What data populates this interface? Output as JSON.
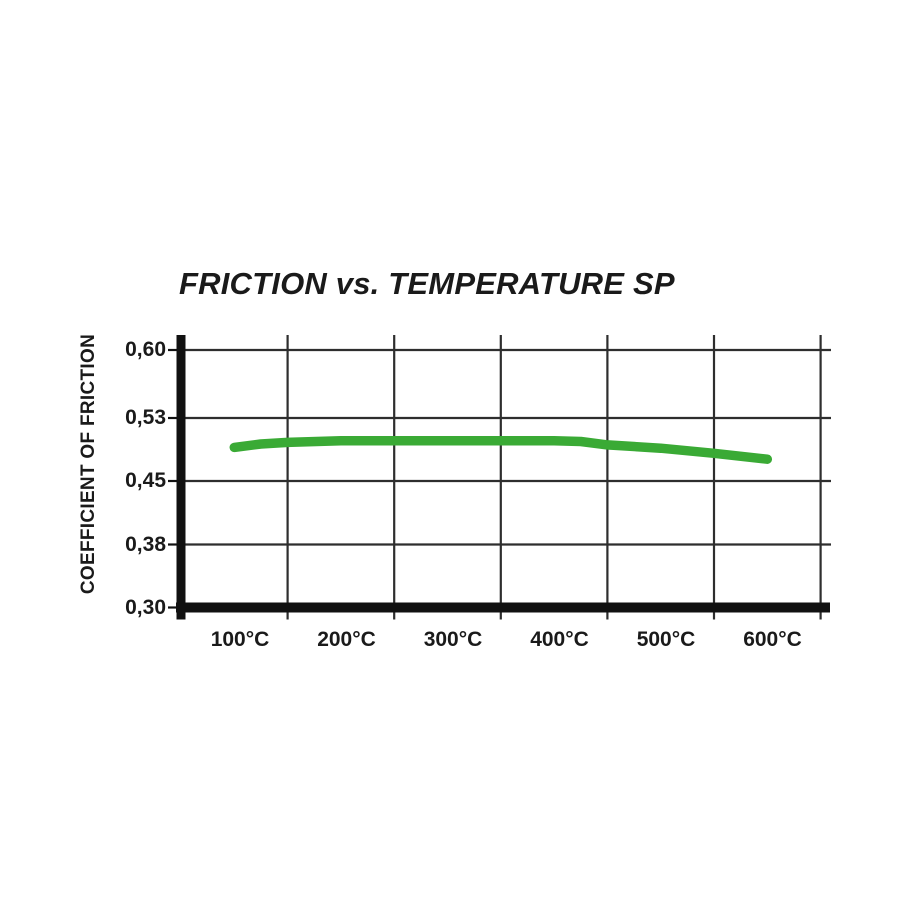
{
  "page": {
    "background": "#ffffff"
  },
  "chart_data": {
    "type": "line",
    "title": "FRICTION vs. TEMPERATURE SP",
    "xlabel": "",
    "ylabel": "COEFFICIENT OF FRICTION",
    "x_unit": "°C",
    "series": [
      {
        "name": "SP",
        "color": "#3aaa35",
        "x": [
          100,
          125,
          150,
          200,
          250,
          300,
          350,
          400,
          425,
          450,
          500,
          550,
          600
        ],
        "y": [
          0.49,
          0.494,
          0.496,
          0.498,
          0.498,
          0.498,
          0.498,
          0.498,
          0.497,
          0.493,
          0.489,
          0.483,
          0.476
        ]
      }
    ],
    "xtick_labels": [
      "100°C",
      "200°C",
      "300°C",
      "400°C",
      "500°C",
      "600°C"
    ],
    "xtick_values": [
      100,
      200,
      300,
      400,
      500,
      600
    ],
    "ytick_labels": [
      "0,60",
      "0,53",
      "0,45",
      "0,38",
      "0,30"
    ],
    "ytick_values": [
      0.6,
      0.525,
      0.45,
      0.375,
      0.3
    ],
    "xlim": [
      50,
      650
    ],
    "ylim": [
      0.3,
      0.6
    ],
    "grid": true,
    "legend_position": "none",
    "colors": {
      "line": "#3aaa35",
      "axis": "#111111",
      "grid": "#2e2e2e",
      "text": "#1a1a1a"
    }
  }
}
